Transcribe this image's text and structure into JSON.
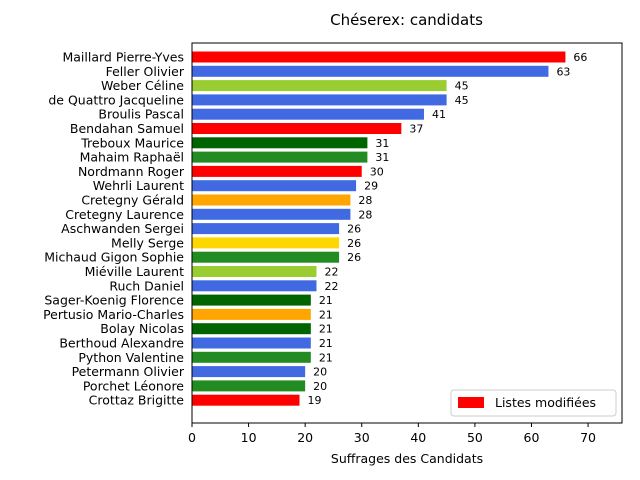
{
  "chart_data": {
    "type": "bar",
    "orientation": "horizontal",
    "title": "Chéserex: candidats",
    "xlabel": "Suffrages des Candidats",
    "ylabel": "",
    "xlim": [
      0,
      76
    ],
    "xticks": [
      0,
      10,
      20,
      30,
      40,
      50,
      60,
      70
    ],
    "grid": false,
    "legend": {
      "placement": "lower-right",
      "entries": [
        {
          "label": "Listes modifiées",
          "color": "#ff0000"
        }
      ]
    },
    "bars": [
      {
        "name": "Maillard Pierre-Yves",
        "value": 66,
        "color": "#ff0000"
      },
      {
        "name": "Feller Olivier",
        "value": 63,
        "color": "#4169e1"
      },
      {
        "name": "Weber Céline",
        "value": 45,
        "color": "#9acd32"
      },
      {
        "name": "de Quattro Jacqueline",
        "value": 45,
        "color": "#4169e1"
      },
      {
        "name": "Broulis Pascal",
        "value": 41,
        "color": "#4169e1"
      },
      {
        "name": "Bendahan Samuel",
        "value": 37,
        "color": "#ff0000"
      },
      {
        "name": "Treboux Maurice",
        "value": 31,
        "color": "#006400"
      },
      {
        "name": "Mahaim Raphaël",
        "value": 31,
        "color": "#228b22"
      },
      {
        "name": "Nordmann Roger",
        "value": 30,
        "color": "#ff0000"
      },
      {
        "name": "Wehrli Laurent",
        "value": 29,
        "color": "#4169e1"
      },
      {
        "name": "Cretegny Gérald",
        "value": 28,
        "color": "#ffa500"
      },
      {
        "name": "Cretegny Laurence",
        "value": 28,
        "color": "#4169e1"
      },
      {
        "name": "Aschwanden Sergei",
        "value": 26,
        "color": "#4169e1"
      },
      {
        "name": "Melly Serge",
        "value": 26,
        "color": "#ffd700"
      },
      {
        "name": "Michaud Gigon Sophie",
        "value": 26,
        "color": "#228b22"
      },
      {
        "name": "Miéville Laurent",
        "value": 22,
        "color": "#9acd32"
      },
      {
        "name": "Ruch Daniel",
        "value": 22,
        "color": "#4169e1"
      },
      {
        "name": "Sager-Koenig Florence",
        "value": 21,
        "color": "#006400"
      },
      {
        "name": "Pertusio Mario-Charles",
        "value": 21,
        "color": "#ffa500"
      },
      {
        "name": "Bolay Nicolas",
        "value": 21,
        "color": "#006400"
      },
      {
        "name": "Berthoud Alexandre",
        "value": 21,
        "color": "#4169e1"
      },
      {
        "name": "Python Valentine",
        "value": 21,
        "color": "#228b22"
      },
      {
        "name": "Petermann Olivier",
        "value": 20,
        "color": "#4169e1"
      },
      {
        "name": "Porchet Léonore",
        "value": 20,
        "color": "#228b22"
      },
      {
        "name": "Crottaz Brigitte",
        "value": 19,
        "color": "#ff0000"
      }
    ]
  }
}
